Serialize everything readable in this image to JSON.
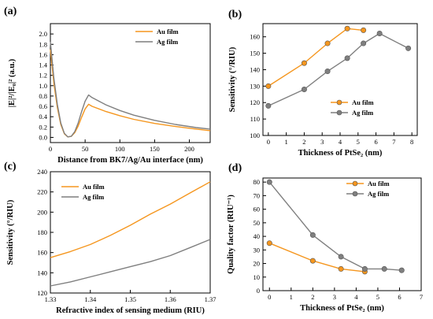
{
  "colors": {
    "au": "#F5961E",
    "ag": "#7F7F7F"
  },
  "chart_data": [
    {
      "panel_label": "(a)",
      "type": "line",
      "xlabel": "Distance from BK7/Ag/Au interface (nm)",
      "ylabel": "|E|²/|E₀|² (a.u.)",
      "xlim": [
        0,
        230
      ],
      "ylim": [
        -0.1,
        2.2
      ],
      "xticks": [
        0,
        50,
        100,
        150,
        200
      ],
      "yticks": [
        0.0,
        0.2,
        0.4,
        0.6,
        0.8,
        1.0,
        1.2,
        1.4,
        1.6,
        1.8,
        2.0
      ],
      "ytick_labels": [
        "0.0",
        "0.2",
        "0.4",
        "0.6",
        "0.8",
        "1.0",
        "1.2",
        "1.4",
        "1.6",
        "1.8",
        "2.0"
      ],
      "legend": "top-right",
      "series": [
        {
          "name": "Au film",
          "color": "au",
          "markers": false,
          "x": [
            0,
            5,
            10,
            15,
            20,
            25,
            30,
            35,
            40,
            45,
            50,
            55,
            60,
            80,
            100,
            120,
            150,
            180,
            210,
            230
          ],
          "y": [
            1.7,
            1.05,
            0.58,
            0.25,
            0.07,
            0.01,
            0.02,
            0.09,
            0.22,
            0.39,
            0.55,
            0.64,
            0.6,
            0.5,
            0.42,
            0.35,
            0.27,
            0.21,
            0.16,
            0.13
          ]
        },
        {
          "name": "Ag film",
          "color": "ag",
          "markers": false,
          "x": [
            0,
            5,
            10,
            15,
            20,
            25,
            30,
            35,
            40,
            45,
            50,
            55,
            60,
            80,
            100,
            120,
            150,
            180,
            210,
            230
          ],
          "y": [
            1.85,
            1.15,
            0.64,
            0.28,
            0.08,
            0.01,
            0.02,
            0.11,
            0.28,
            0.5,
            0.7,
            0.82,
            0.77,
            0.63,
            0.52,
            0.43,
            0.33,
            0.25,
            0.19,
            0.16
          ]
        }
      ]
    },
    {
      "panel_label": "(b)",
      "type": "line",
      "xlabel": "Thickness of PtSe₂ (nm)",
      "ylabel": "Sensitivity (°/RIU)",
      "xlim": [
        -0.3,
        8.3
      ],
      "ylim": [
        100,
        168
      ],
      "xticks": [
        0,
        1,
        2,
        3,
        4,
        5,
        6,
        7,
        8
      ],
      "yticks": [
        100,
        110,
        120,
        130,
        140,
        150,
        160
      ],
      "ytick_labels": [
        "100",
        "110",
        "120",
        "130",
        "140",
        "150",
        "160"
      ],
      "legend": "right",
      "series": [
        {
          "name": "Au film",
          "color": "au",
          "markers": true,
          "x": [
            0,
            2,
            3.3,
            4.4,
            5.3
          ],
          "y": [
            130,
            144,
            156,
            165,
            164
          ]
        },
        {
          "name": "Ag film",
          "color": "ag",
          "markers": true,
          "x": [
            0,
            2,
            3.3,
            4.4,
            5.3,
            6.2,
            7.8
          ],
          "y": [
            118,
            128,
            139,
            147,
            156,
            162,
            153
          ]
        }
      ]
    },
    {
      "panel_label": "(c)",
      "type": "line",
      "xlabel": "Refractive index of sensing medium (RIU)",
      "ylabel": "Sensitivity (°/RIU)",
      "xlim": [
        1.33,
        1.37
      ],
      "ylim": [
        120,
        240
      ],
      "xticks": [
        1.33,
        1.34,
        1.35,
        1.36,
        1.37
      ],
      "xtick_labels": [
        "1.33",
        "1.34",
        "1.35",
        "1.36",
        "1.37"
      ],
      "yticks": [
        120,
        140,
        160,
        180,
        200,
        220,
        240
      ],
      "ytick_labels": [
        "120",
        "140",
        "160",
        "180",
        "200",
        "220",
        "240"
      ],
      "legend": "top-left",
      "series": [
        {
          "name": "Au film",
          "color": "au",
          "markers": false,
          "x": [
            1.33,
            1.335,
            1.34,
            1.345,
            1.35,
            1.355,
            1.36,
            1.365,
            1.37
          ],
          "y": [
            155,
            161,
            168,
            177,
            187,
            198,
            208,
            219,
            230
          ]
        },
        {
          "name": "Ag film",
          "color": "ag",
          "markers": false,
          "x": [
            1.33,
            1.335,
            1.34,
            1.345,
            1.35,
            1.355,
            1.36,
            1.365,
            1.37
          ],
          "y": [
            127,
            131,
            136,
            141,
            146,
            151,
            157,
            165,
            173
          ]
        }
      ]
    },
    {
      "panel_label": "(d)",
      "type": "line",
      "xlabel": "Thickness of PtSe₂ (nm)",
      "ylabel": "Quality factor (RIU⁻¹)",
      "xlim": [
        -0.3,
        7
      ],
      "ylim": [
        0,
        83
      ],
      "xticks": [
        0,
        1,
        2,
        3,
        4,
        5,
        6,
        7
      ],
      "yticks": [
        0,
        10,
        20,
        30,
        40,
        50,
        60,
        70,
        80
      ],
      "ytick_labels": [
        "0",
        "10",
        "20",
        "30",
        "40",
        "50",
        "60",
        "70",
        "80"
      ],
      "legend": "top-right",
      "series": [
        {
          "name": "Au film",
          "color": "au",
          "markers": true,
          "x": [
            0,
            2,
            3.3,
            4.4
          ],
          "y": [
            35,
            22,
            16,
            14
          ]
        },
        {
          "name": "Ag film",
          "color": "ag",
          "markers": true,
          "x": [
            0,
            2,
            3.3,
            4.4,
            5.3,
            6.1
          ],
          "y": [
            80,
            41,
            25,
            16,
            16,
            15
          ]
        }
      ]
    }
  ]
}
